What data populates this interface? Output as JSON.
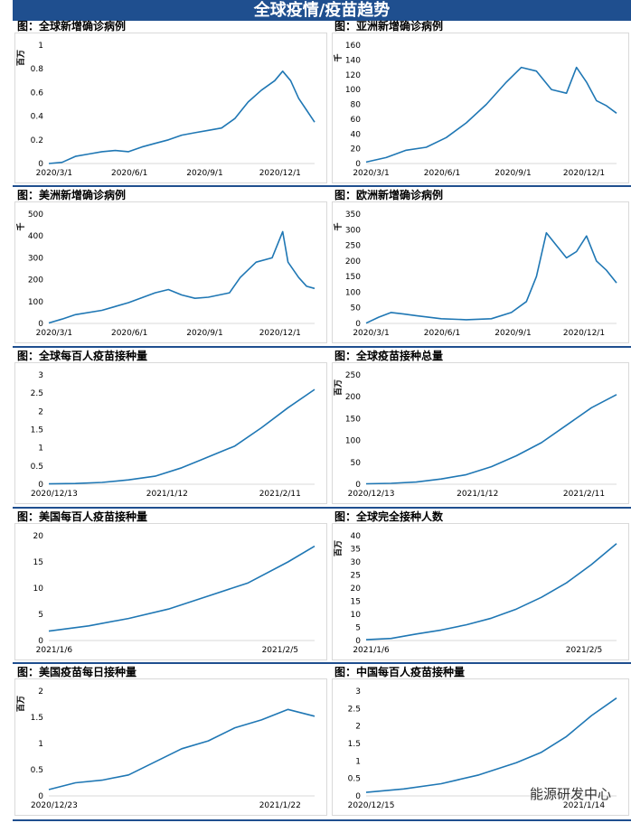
{
  "page": {
    "title": "全球疫情/疫苗趋势",
    "watermark": "能源研发中心"
  },
  "chart_data": [
    {
      "id": "c1",
      "type": "line",
      "title": "图：全球新增确诊病例",
      "ylabel": "百万",
      "ylim": [
        0,
        1
      ],
      "yticks": [
        "0",
        "0.2",
        "0.4",
        "0.6",
        "0.8",
        "1"
      ],
      "xticks": [
        "2020/3/1",
        "2020/6/1",
        "2020/9/1",
        "2020/12/1"
      ],
      "points": [
        [
          0,
          0
        ],
        [
          0.05,
          0.01
        ],
        [
          0.1,
          0.06
        ],
        [
          0.15,
          0.08
        ],
        [
          0.2,
          0.1
        ],
        [
          0.25,
          0.11
        ],
        [
          0.3,
          0.1
        ],
        [
          0.35,
          0.14
        ],
        [
          0.4,
          0.17
        ],
        [
          0.45,
          0.2
        ],
        [
          0.5,
          0.24
        ],
        [
          0.55,
          0.26
        ],
        [
          0.6,
          0.28
        ],
        [
          0.65,
          0.3
        ],
        [
          0.7,
          0.38
        ],
        [
          0.75,
          0.52
        ],
        [
          0.8,
          0.62
        ],
        [
          0.85,
          0.7
        ],
        [
          0.88,
          0.78
        ],
        [
          0.91,
          0.7
        ],
        [
          0.94,
          0.55
        ],
        [
          0.97,
          0.45
        ],
        [
          1,
          0.35
        ]
      ]
    },
    {
      "id": "c2",
      "type": "line",
      "title": "图：亚洲新增确诊病例",
      "ylabel": "千",
      "ylim": [
        0,
        160
      ],
      "yticks": [
        "0",
        "20",
        "40",
        "60",
        "80",
        "100",
        "120",
        "140",
        "160"
      ],
      "xticks": [
        "2020/3/1",
        "2020/6/1",
        "2020/9/1",
        "2020/12/1"
      ],
      "points": [
        [
          0,
          2
        ],
        [
          0.08,
          8
        ],
        [
          0.16,
          18
        ],
        [
          0.24,
          22
        ],
        [
          0.32,
          35
        ],
        [
          0.4,
          55
        ],
        [
          0.48,
          80
        ],
        [
          0.56,
          110
        ],
        [
          0.62,
          130
        ],
        [
          0.68,
          125
        ],
        [
          0.74,
          100
        ],
        [
          0.8,
          95
        ],
        [
          0.84,
          130
        ],
        [
          0.88,
          110
        ],
        [
          0.92,
          85
        ],
        [
          0.96,
          78
        ],
        [
          1,
          68
        ]
      ]
    },
    {
      "id": "c3",
      "type": "line",
      "title": "图：美洲新增确诊病例",
      "ylabel": "千",
      "ylim": [
        0,
        500
      ],
      "yticks": [
        "0",
        "100",
        "200",
        "300",
        "400",
        "500"
      ],
      "xticks": [
        "2020/3/1",
        "2020/6/1",
        "2020/9/1",
        "2020/12/1"
      ],
      "points": [
        [
          0,
          2
        ],
        [
          0.05,
          20
        ],
        [
          0.1,
          40
        ],
        [
          0.2,
          60
        ],
        [
          0.3,
          95
        ],
        [
          0.4,
          140
        ],
        [
          0.45,
          155
        ],
        [
          0.5,
          130
        ],
        [
          0.55,
          115
        ],
        [
          0.6,
          120
        ],
        [
          0.68,
          140
        ],
        [
          0.72,
          210
        ],
        [
          0.78,
          280
        ],
        [
          0.84,
          300
        ],
        [
          0.88,
          420
        ],
        [
          0.9,
          280
        ],
        [
          0.94,
          210
        ],
        [
          0.97,
          170
        ],
        [
          1,
          160
        ]
      ]
    },
    {
      "id": "c4",
      "type": "line",
      "title": "图：欧洲新增确诊病例",
      "ylabel": "千",
      "ylim": [
        0,
        350
      ],
      "yticks": [
        "0",
        "50",
        "100",
        "150",
        "200",
        "250",
        "300",
        "350"
      ],
      "xticks": [
        "2020/3/1",
        "2020/6/1",
        "2020/9/1",
        "2020/12/1"
      ],
      "points": [
        [
          0,
          1
        ],
        [
          0.05,
          20
        ],
        [
          0.1,
          35
        ],
        [
          0.15,
          30
        ],
        [
          0.2,
          25
        ],
        [
          0.3,
          15
        ],
        [
          0.4,
          12
        ],
        [
          0.5,
          15
        ],
        [
          0.58,
          35
        ],
        [
          0.64,
          70
        ],
        [
          0.68,
          150
        ],
        [
          0.72,
          290
        ],
        [
          0.76,
          250
        ],
        [
          0.8,
          210
        ],
        [
          0.84,
          230
        ],
        [
          0.88,
          280
        ],
        [
          0.92,
          200
        ],
        [
          0.96,
          170
        ],
        [
          1,
          130
        ]
      ]
    },
    {
      "id": "c5",
      "type": "line",
      "title": "图：全球每百人疫苗接种量",
      "ylabel": "",
      "ylim": [
        0,
        3
      ],
      "yticks": [
        "0",
        "0.5",
        "1",
        "1.5",
        "2",
        "2.5",
        "3"
      ],
      "xticks": [
        "2020/12/13",
        "2021/1/12",
        "2021/2/11"
      ],
      "points": [
        [
          0,
          0.01
        ],
        [
          0.1,
          0.02
        ],
        [
          0.2,
          0.05
        ],
        [
          0.3,
          0.12
        ],
        [
          0.4,
          0.22
        ],
        [
          0.5,
          0.45
        ],
        [
          0.6,
          0.75
        ],
        [
          0.7,
          1.05
        ],
        [
          0.8,
          1.55
        ],
        [
          0.9,
          2.1
        ],
        [
          1,
          2.6
        ]
      ]
    },
    {
      "id": "c6",
      "type": "line",
      "title": "图：全球疫苗接种总量",
      "ylabel": "百万",
      "ylim": [
        0,
        250
      ],
      "yticks": [
        "0",
        "50",
        "100",
        "150",
        "200",
        "250"
      ],
      "xticks": [
        "2020/12/13",
        "2021/1/12",
        "2021/2/11"
      ],
      "points": [
        [
          0,
          1
        ],
        [
          0.1,
          2
        ],
        [
          0.2,
          5
        ],
        [
          0.3,
          12
        ],
        [
          0.4,
          22
        ],
        [
          0.5,
          40
        ],
        [
          0.6,
          65
        ],
        [
          0.7,
          95
        ],
        [
          0.8,
          135
        ],
        [
          0.9,
          175
        ],
        [
          1,
          205
        ]
      ]
    },
    {
      "id": "c7",
      "type": "line",
      "title": "图：美国每百人疫苗接种量",
      "ylabel": "",
      "ylim": [
        0,
        20
      ],
      "yticks": [
        "0",
        "5",
        "10",
        "15",
        "20"
      ],
      "xticks": [
        "2021/1/6",
        "2021/2/5"
      ],
      "points": [
        [
          0,
          1.8
        ],
        [
          0.15,
          2.8
        ],
        [
          0.3,
          4.2
        ],
        [
          0.45,
          6.0
        ],
        [
          0.6,
          8.5
        ],
        [
          0.75,
          11.0
        ],
        [
          0.9,
          15.0
        ],
        [
          1,
          18.0
        ]
      ]
    },
    {
      "id": "c8",
      "type": "line",
      "title": "图：全球完全接种人数",
      "ylabel": "百万",
      "ylim": [
        0,
        40
      ],
      "yticks": [
        "0",
        "5",
        "10",
        "15",
        "20",
        "25",
        "30",
        "35",
        "40"
      ],
      "xticks": [
        "2021/1/6",
        "2021/2/5"
      ],
      "points": [
        [
          0,
          0.3
        ],
        [
          0.1,
          0.8
        ],
        [
          0.2,
          2.5
        ],
        [
          0.3,
          4.0
        ],
        [
          0.4,
          6.0
        ],
        [
          0.5,
          8.5
        ],
        [
          0.6,
          12.0
        ],
        [
          0.7,
          16.5
        ],
        [
          0.8,
          22.0
        ],
        [
          0.9,
          29.0
        ],
        [
          1,
          37.0
        ]
      ]
    },
    {
      "id": "c9",
      "type": "line",
      "title": "图：美国疫苗每日接种量",
      "ylabel": "百万",
      "ylim": [
        0,
        2
      ],
      "yticks": [
        "0",
        "0.5",
        "1",
        "1.5",
        "2"
      ],
      "xticks": [
        "2020/12/23",
        "2021/1/22"
      ],
      "points": [
        [
          0,
          0.12
        ],
        [
          0.1,
          0.25
        ],
        [
          0.2,
          0.3
        ],
        [
          0.3,
          0.4
        ],
        [
          0.4,
          0.65
        ],
        [
          0.5,
          0.9
        ],
        [
          0.6,
          1.05
        ],
        [
          0.7,
          1.3
        ],
        [
          0.8,
          1.45
        ],
        [
          0.9,
          1.65
        ],
        [
          1,
          1.52
        ]
      ]
    },
    {
      "id": "c10",
      "type": "line",
      "title": "图：中国每百人疫苗接种量",
      "ylabel": "",
      "ylim": [
        0,
        3
      ],
      "yticks": [
        "0",
        "0.5",
        "1",
        "1.5",
        "2",
        "2.5",
        "3"
      ],
      "xticks": [
        "2020/12/15",
        "2021/1/14"
      ],
      "points": [
        [
          0,
          0.1
        ],
        [
          0.15,
          0.2
        ],
        [
          0.3,
          0.35
        ],
        [
          0.45,
          0.6
        ],
        [
          0.6,
          0.95
        ],
        [
          0.7,
          1.25
        ],
        [
          0.8,
          1.7
        ],
        [
          0.9,
          2.3
        ],
        [
          1,
          2.8
        ]
      ]
    }
  ]
}
